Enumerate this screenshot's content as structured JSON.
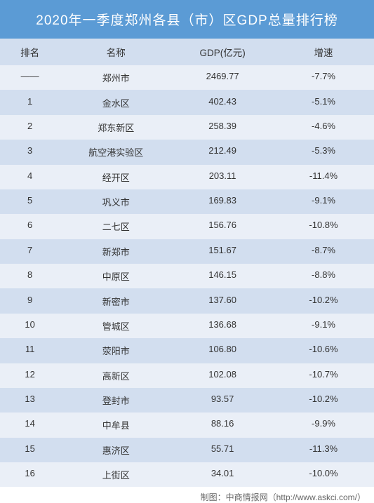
{
  "title": "2020年一季度郑州各县（市）区GDP总量排行榜",
  "columns": {
    "rank": "排名",
    "name": "名称",
    "gdp": "GDP(亿元)",
    "growth": "增速"
  },
  "rows": [
    {
      "rank": "——",
      "name": "郑州市",
      "gdp": "2469.77",
      "growth": "-7.7%"
    },
    {
      "rank": "1",
      "name": "金水区",
      "gdp": "402.43",
      "growth": "-5.1%"
    },
    {
      "rank": "2",
      "name": "郑东新区",
      "gdp": "258.39",
      "growth": "-4.6%"
    },
    {
      "rank": "3",
      "name": "航空港实验区",
      "gdp": "212.49",
      "growth": "-5.3%"
    },
    {
      "rank": "4",
      "name": "经开区",
      "gdp": "203.11",
      "growth": "-11.4%"
    },
    {
      "rank": "5",
      "name": "巩义市",
      "gdp": "169.83",
      "growth": "-9.1%"
    },
    {
      "rank": "6",
      "name": "二七区",
      "gdp": "156.76",
      "growth": "-10.8%"
    },
    {
      "rank": "7",
      "name": "新郑市",
      "gdp": "151.67",
      "growth": "-8.7%"
    },
    {
      "rank": "8",
      "name": "中原区",
      "gdp": "146.15",
      "growth": "-8.8%"
    },
    {
      "rank": "9",
      "name": "新密市",
      "gdp": "137.60",
      "growth": "-10.2%"
    },
    {
      "rank": "10",
      "name": "管城区",
      "gdp": "136.68",
      "growth": "-9.1%"
    },
    {
      "rank": "11",
      "name": "荥阳市",
      "gdp": "106.80",
      "growth": "-10.6%"
    },
    {
      "rank": "12",
      "name": "高新区",
      "gdp": "102.08",
      "growth": "-10.7%"
    },
    {
      "rank": "13",
      "name": "登封市",
      "gdp": "93.57",
      "growth": "-10.2%"
    },
    {
      "rank": "14",
      "name": "中牟县",
      "gdp": "88.16",
      "growth": "-9.9%"
    },
    {
      "rank": "15",
      "name": "惠济区",
      "gdp": "55.71",
      "growth": "-11.3%"
    },
    {
      "rank": "16",
      "name": "上街区",
      "gdp": "34.01",
      "growth": "-10.0%"
    }
  ],
  "footer": "制图：中商情报网（http://www.askci.com/）",
  "style": {
    "title_bg": "#5b9bd5",
    "header_bg": "#d2deef",
    "row_odd_bg": "#eaeff7",
    "row_even_bg": "#d2deef",
    "text_color": "#333333",
    "title_color": "#ffffff"
  }
}
